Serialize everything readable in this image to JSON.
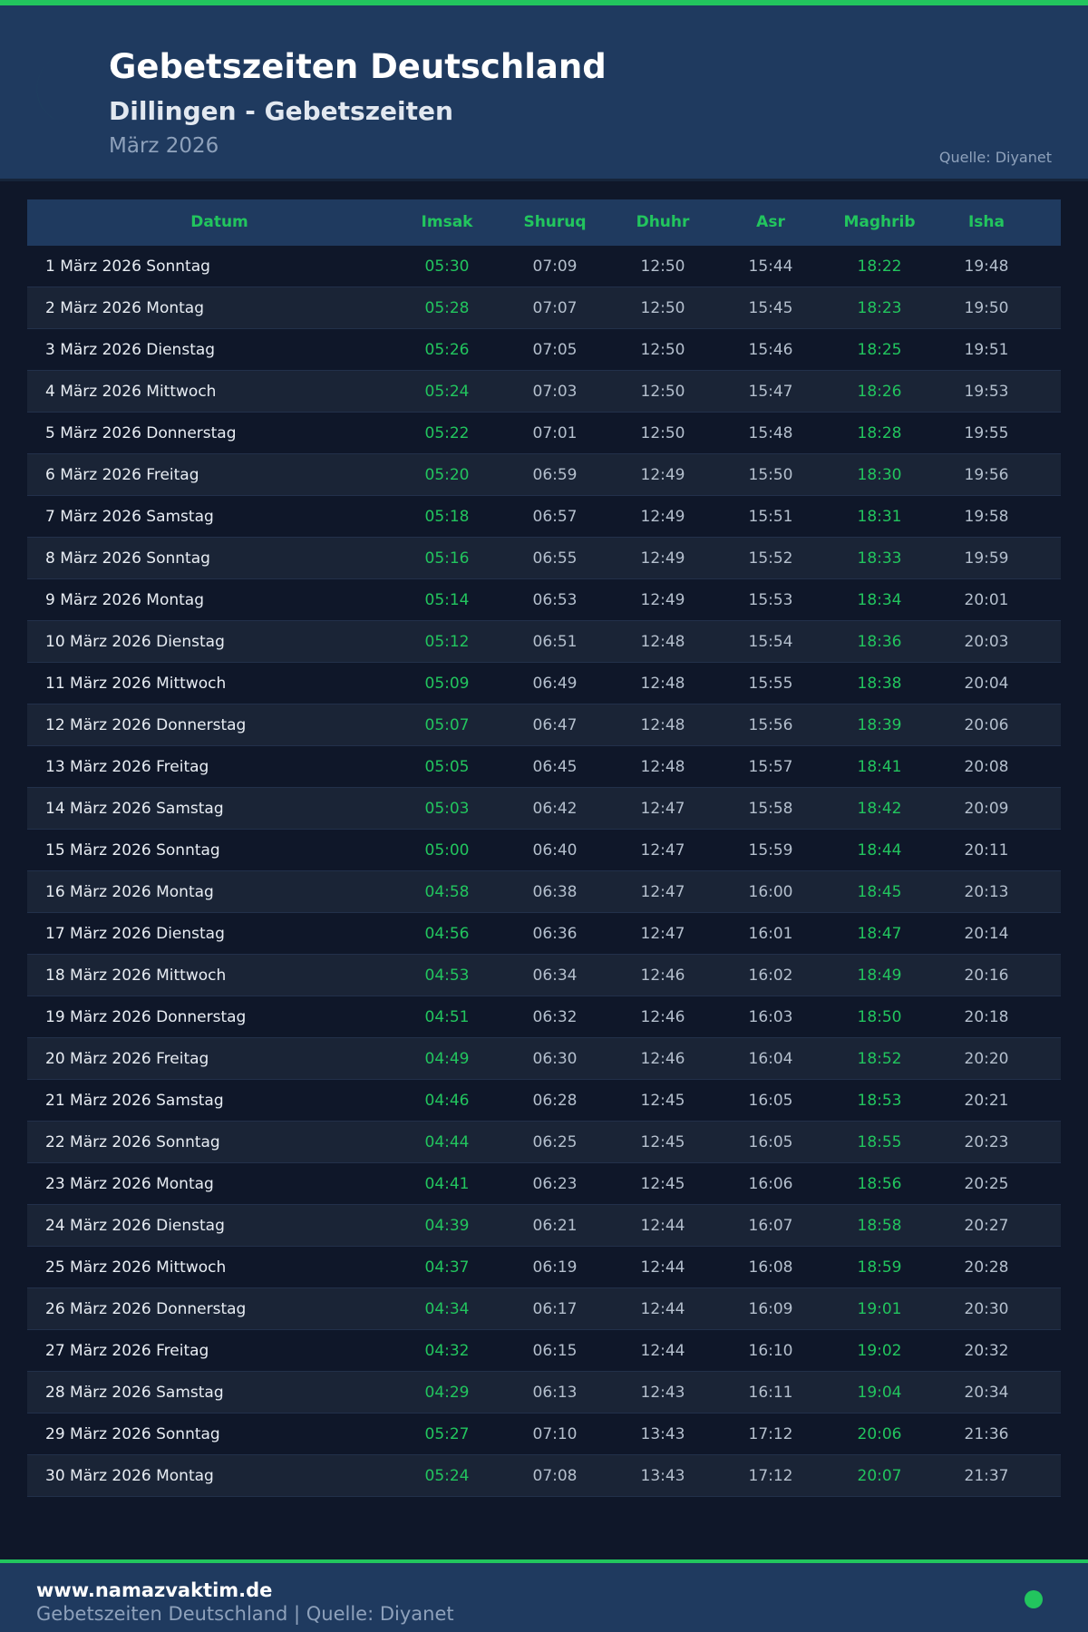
{
  "header": {
    "title": "Gebetszeiten Deutschland",
    "subtitle": "Dillingen - Gebetszeiten",
    "month": "März 2026",
    "source": "Quelle: Diyanet"
  },
  "colors": {
    "accent": "#22c55e",
    "header_bg": "#1f3a5f",
    "page_bg": "#0f1729"
  },
  "table": {
    "columns": [
      "Datum",
      "Imsak",
      "Shuruq",
      "Dhuhr",
      "Asr",
      "Maghrib",
      "Isha"
    ],
    "rows": [
      [
        "1 März 2026 Sonntag",
        "05:30",
        "07:09",
        "12:50",
        "15:44",
        "18:22",
        "19:48"
      ],
      [
        "2 März 2026 Montag",
        "05:28",
        "07:07",
        "12:50",
        "15:45",
        "18:23",
        "19:50"
      ],
      [
        "3 März 2026 Dienstag",
        "05:26",
        "07:05",
        "12:50",
        "15:46",
        "18:25",
        "19:51"
      ],
      [
        "4 März 2026 Mittwoch",
        "05:24",
        "07:03",
        "12:50",
        "15:47",
        "18:26",
        "19:53"
      ],
      [
        "5 März 2026 Donnerstag",
        "05:22",
        "07:01",
        "12:50",
        "15:48",
        "18:28",
        "19:55"
      ],
      [
        "6 März 2026 Freitag",
        "05:20",
        "06:59",
        "12:49",
        "15:50",
        "18:30",
        "19:56"
      ],
      [
        "7 März 2026 Samstag",
        "05:18",
        "06:57",
        "12:49",
        "15:51",
        "18:31",
        "19:58"
      ],
      [
        "8 März 2026 Sonntag",
        "05:16",
        "06:55",
        "12:49",
        "15:52",
        "18:33",
        "19:59"
      ],
      [
        "9 März 2026 Montag",
        "05:14",
        "06:53",
        "12:49",
        "15:53",
        "18:34",
        "20:01"
      ],
      [
        "10 März 2026 Dienstag",
        "05:12",
        "06:51",
        "12:48",
        "15:54",
        "18:36",
        "20:03"
      ],
      [
        "11 März 2026 Mittwoch",
        "05:09",
        "06:49",
        "12:48",
        "15:55",
        "18:38",
        "20:04"
      ],
      [
        "12 März 2026 Donnerstag",
        "05:07",
        "06:47",
        "12:48",
        "15:56",
        "18:39",
        "20:06"
      ],
      [
        "13 März 2026 Freitag",
        "05:05",
        "06:45",
        "12:48",
        "15:57",
        "18:41",
        "20:08"
      ],
      [
        "14 März 2026 Samstag",
        "05:03",
        "06:42",
        "12:47",
        "15:58",
        "18:42",
        "20:09"
      ],
      [
        "15 März 2026 Sonntag",
        "05:00",
        "06:40",
        "12:47",
        "15:59",
        "18:44",
        "20:11"
      ],
      [
        "16 März 2026 Montag",
        "04:58",
        "06:38",
        "12:47",
        "16:00",
        "18:45",
        "20:13"
      ],
      [
        "17 März 2026 Dienstag",
        "04:56",
        "06:36",
        "12:47",
        "16:01",
        "18:47",
        "20:14"
      ],
      [
        "18 März 2026 Mittwoch",
        "04:53",
        "06:34",
        "12:46",
        "16:02",
        "18:49",
        "20:16"
      ],
      [
        "19 März 2026 Donnerstag",
        "04:51",
        "06:32",
        "12:46",
        "16:03",
        "18:50",
        "20:18"
      ],
      [
        "20 März 2026 Freitag",
        "04:49",
        "06:30",
        "12:46",
        "16:04",
        "18:52",
        "20:20"
      ],
      [
        "21 März 2026 Samstag",
        "04:46",
        "06:28",
        "12:45",
        "16:05",
        "18:53",
        "20:21"
      ],
      [
        "22 März 2026 Sonntag",
        "04:44",
        "06:25",
        "12:45",
        "16:05",
        "18:55",
        "20:23"
      ],
      [
        "23 März 2026 Montag",
        "04:41",
        "06:23",
        "12:45",
        "16:06",
        "18:56",
        "20:25"
      ],
      [
        "24 März 2026 Dienstag",
        "04:39",
        "06:21",
        "12:44",
        "16:07",
        "18:58",
        "20:27"
      ],
      [
        "25 März 2026 Mittwoch",
        "04:37",
        "06:19",
        "12:44",
        "16:08",
        "18:59",
        "20:28"
      ],
      [
        "26 März 2026 Donnerstag",
        "04:34",
        "06:17",
        "12:44",
        "16:09",
        "19:01",
        "20:30"
      ],
      [
        "27 März 2026 Freitag",
        "04:32",
        "06:15",
        "12:44",
        "16:10",
        "19:02",
        "20:32"
      ],
      [
        "28 März 2026 Samstag",
        "04:29",
        "06:13",
        "12:43",
        "16:11",
        "19:04",
        "20:34"
      ],
      [
        "29 März 2026 Sonntag",
        "05:27",
        "07:10",
        "13:43",
        "17:12",
        "20:06",
        "21:36"
      ],
      [
        "30 März 2026 Montag",
        "05:24",
        "07:08",
        "13:43",
        "17:12",
        "20:07",
        "21:37"
      ]
    ]
  },
  "footer": {
    "url": "www.namazvaktim.de",
    "text": "Gebetszeiten Deutschland | Quelle: Diyanet"
  }
}
